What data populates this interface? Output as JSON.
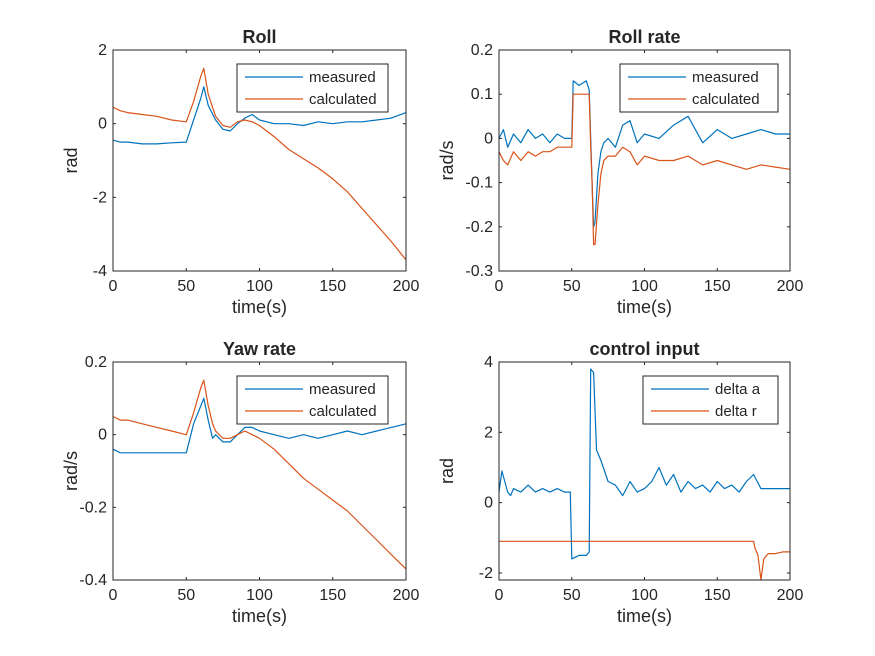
{
  "colors": {
    "series1": "#0072BD",
    "series2": "#D95319"
  },
  "chart_data": [
    {
      "type": "line",
      "title": "Roll",
      "xlabel": "time(s)",
      "ylabel": "rad",
      "xlim": [
        0,
        200
      ],
      "ylim": [
        -4,
        2
      ],
      "xticks": [
        0,
        50,
        100,
        150,
        200
      ],
      "yticks": [
        -4,
        -2,
        0,
        2
      ],
      "legend_placement": "top-right",
      "series": [
        {
          "name": "measured",
          "x": [
            0,
            5,
            10,
            20,
            30,
            40,
            50,
            55,
            60,
            62,
            65,
            70,
            75,
            80,
            85,
            90,
            95,
            100,
            110,
            120,
            130,
            140,
            150,
            160,
            170,
            180,
            190,
            200
          ],
          "y": [
            -0.45,
            -0.5,
            -0.5,
            -0.55,
            -0.55,
            -0.52,
            -0.5,
            0.1,
            0.7,
            1.0,
            0.5,
            0.1,
            -0.15,
            -0.2,
            0.0,
            0.15,
            0.25,
            0.1,
            0.0,
            0.0,
            -0.05,
            0.05,
            0.0,
            0.05,
            0.05,
            0.1,
            0.15,
            0.3
          ]
        },
        {
          "name": "calculated",
          "x": [
            0,
            5,
            10,
            20,
            30,
            40,
            50,
            55,
            60,
            62,
            65,
            70,
            75,
            80,
            85,
            90,
            95,
            100,
            110,
            120,
            130,
            140,
            150,
            160,
            170,
            180,
            190,
            200
          ],
          "y": [
            0.45,
            0.35,
            0.3,
            0.25,
            0.2,
            0.1,
            0.05,
            0.6,
            1.3,
            1.5,
            0.8,
            0.2,
            -0.05,
            -0.1,
            0.05,
            0.1,
            0.05,
            -0.05,
            -0.35,
            -0.7,
            -0.95,
            -1.2,
            -1.5,
            -1.85,
            -2.3,
            -2.75,
            -3.2,
            -3.7
          ]
        }
      ]
    },
    {
      "type": "line",
      "title": "Roll rate",
      "xlabel": "time(s)",
      "ylabel": "rad/s",
      "xlim": [
        0,
        200
      ],
      "ylim": [
        -0.3,
        0.2
      ],
      "xticks": [
        0,
        50,
        100,
        150,
        200
      ],
      "yticks": [
        -0.3,
        -0.2,
        -0.1,
        0,
        0.1,
        0.2
      ],
      "legend_placement": "top-right",
      "series": [
        {
          "name": "measured",
          "x": [
            0,
            3,
            6,
            10,
            15,
            20,
            25,
            30,
            35,
            40,
            45,
            50,
            51,
            55,
            60,
            62,
            63,
            64,
            65,
            66,
            68,
            70,
            72,
            75,
            80,
            85,
            90,
            95,
            100,
            110,
            120,
            130,
            140,
            150,
            160,
            170,
            180,
            190,
            200
          ],
          "y": [
            0.0,
            0.02,
            -0.02,
            0.01,
            -0.01,
            0.02,
            0.0,
            0.01,
            -0.01,
            0.01,
            0.0,
            0.0,
            0.13,
            0.12,
            0.13,
            0.11,
            0.0,
            -0.1,
            -0.2,
            -0.19,
            -0.08,
            -0.03,
            -0.01,
            0.0,
            -0.02,
            0.03,
            0.04,
            -0.01,
            0.01,
            0.0,
            0.03,
            0.05,
            -0.01,
            0.02,
            0.0,
            0.01,
            0.02,
            0.01,
            0.01
          ]
        },
        {
          "name": "calculated",
          "x": [
            0,
            3,
            6,
            10,
            15,
            20,
            25,
            30,
            35,
            40,
            45,
            50,
            51,
            55,
            60,
            62,
            63,
            64,
            65,
            66,
            68,
            70,
            72,
            75,
            80,
            85,
            90,
            95,
            100,
            110,
            120,
            130,
            140,
            150,
            160,
            170,
            180,
            190,
            200
          ],
          "y": [
            -0.03,
            -0.05,
            -0.06,
            -0.03,
            -0.05,
            -0.03,
            -0.04,
            -0.03,
            -0.03,
            -0.02,
            -0.02,
            -0.02,
            0.1,
            0.1,
            0.1,
            0.1,
            -0.02,
            -0.1,
            -0.24,
            -0.24,
            -0.15,
            -0.08,
            -0.05,
            -0.04,
            -0.04,
            -0.02,
            -0.03,
            -0.06,
            -0.04,
            -0.05,
            -0.05,
            -0.04,
            -0.06,
            -0.05,
            -0.06,
            -0.07,
            -0.06,
            -0.065,
            -0.07
          ]
        }
      ]
    },
    {
      "type": "line",
      "title": "Yaw rate",
      "xlabel": "time(s)",
      "ylabel": "rad/s",
      "xlim": [
        0,
        200
      ],
      "ylim": [
        -0.4,
        0.2
      ],
      "xticks": [
        0,
        50,
        100,
        150,
        200
      ],
      "yticks": [
        -0.4,
        -0.2,
        0,
        0.2
      ],
      "legend_placement": "top-right",
      "series": [
        {
          "name": "measured",
          "x": [
            0,
            5,
            10,
            20,
            30,
            40,
            50,
            55,
            60,
            62,
            65,
            68,
            70,
            75,
            80,
            85,
            90,
            95,
            100,
            110,
            120,
            130,
            140,
            150,
            160,
            170,
            180,
            190,
            200
          ],
          "y": [
            -0.04,
            -0.05,
            -0.05,
            -0.05,
            -0.05,
            -0.05,
            -0.05,
            0.03,
            0.08,
            0.1,
            0.04,
            -0.01,
            0.0,
            -0.02,
            -0.02,
            0.0,
            0.02,
            0.02,
            0.01,
            0.0,
            -0.01,
            0.0,
            -0.01,
            0.0,
            0.01,
            0.0,
            0.01,
            0.02,
            0.03
          ]
        },
        {
          "name": "calculated",
          "x": [
            0,
            5,
            10,
            20,
            30,
            40,
            50,
            55,
            60,
            62,
            65,
            68,
            70,
            75,
            80,
            85,
            90,
            95,
            100,
            110,
            120,
            130,
            140,
            150,
            160,
            170,
            180,
            190,
            200
          ],
          "y": [
            0.05,
            0.04,
            0.04,
            0.03,
            0.02,
            0.01,
            0.0,
            0.06,
            0.13,
            0.15,
            0.08,
            0.03,
            0.01,
            -0.01,
            -0.01,
            0.0,
            0.01,
            0.0,
            -0.01,
            -0.04,
            -0.08,
            -0.12,
            -0.15,
            -0.18,
            -0.21,
            -0.25,
            -0.29,
            -0.33,
            -0.37
          ]
        }
      ]
    },
    {
      "type": "line",
      "title": "control input",
      "xlabel": "time(s)",
      "ylabel": "rad",
      "xlim": [
        0,
        200
      ],
      "ylim": [
        -2.2,
        4
      ],
      "xticks": [
        0,
        50,
        100,
        150,
        200
      ],
      "yticks": [
        -2,
        0,
        2,
        4
      ],
      "legend_placement": "top-right",
      "series": [
        {
          "name": "delta a",
          "x": [
            0,
            2,
            4,
            6,
            8,
            10,
            15,
            20,
            25,
            30,
            35,
            40,
            45,
            49,
            50,
            55,
            60,
            62,
            63,
            65,
            67,
            70,
            75,
            80,
            85,
            90,
            95,
            100,
            105,
            110,
            115,
            120,
            125,
            130,
            135,
            140,
            145,
            150,
            155,
            160,
            165,
            170,
            175,
            180,
            190,
            200
          ],
          "y": [
            0.3,
            0.9,
            0.6,
            0.3,
            0.2,
            0.4,
            0.3,
            0.5,
            0.3,
            0.4,
            0.3,
            0.4,
            0.3,
            0.3,
            -1.6,
            -1.5,
            -1.5,
            -1.4,
            3.8,
            3.7,
            1.5,
            1.2,
            0.6,
            0.5,
            0.2,
            0.6,
            0.3,
            0.4,
            0.6,
            1.0,
            0.5,
            0.8,
            0.3,
            0.6,
            0.4,
            0.5,
            0.3,
            0.6,
            0.4,
            0.5,
            0.3,
            0.6,
            0.8,
            0.4,
            0.4,
            0.4
          ]
        },
        {
          "name": "delta r",
          "x": [
            0,
            20,
            40,
            60,
            80,
            100,
            120,
            140,
            160,
            170,
            175,
            176,
            178,
            180,
            182,
            185,
            190,
            195,
            200
          ],
          "y": [
            -1.1,
            -1.1,
            -1.1,
            -1.1,
            -1.1,
            -1.1,
            -1.1,
            -1.1,
            -1.1,
            -1.1,
            -1.1,
            -1.3,
            -1.5,
            -2.2,
            -1.6,
            -1.45,
            -1.45,
            -1.4,
            -1.4
          ]
        }
      ]
    }
  ]
}
